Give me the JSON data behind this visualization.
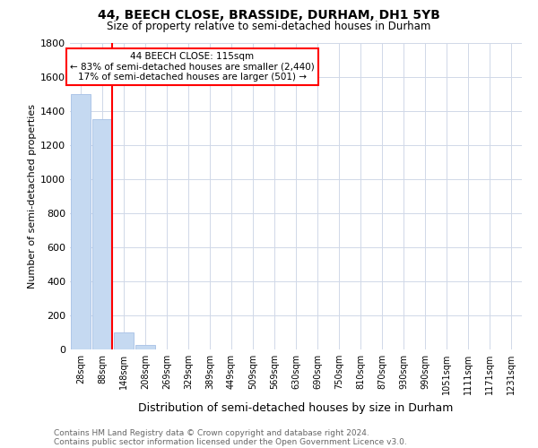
{
  "title1": "44, BEECH CLOSE, BRASSIDE, DURHAM, DH1 5YB",
  "title2": "Size of property relative to semi-detached houses in Durham",
  "xlabel": "Distribution of semi-detached houses by size in Durham",
  "ylabel": "Number of semi-detached properties",
  "footnote1": "Contains HM Land Registry data © Crown copyright and database right 2024.",
  "footnote2": "Contains public sector information licensed under the Open Government Licence v3.0.",
  "annotation_line1": "44 BEECH CLOSE: 115sqm",
  "annotation_line2": "← 83% of semi-detached houses are smaller (2,440)",
  "annotation_line3": "17% of semi-detached houses are larger (501) →",
  "bar_labels": [
    "28sqm",
    "88sqm",
    "148sqm",
    "208sqm",
    "269sqm",
    "329sqm",
    "389sqm",
    "449sqm",
    "509sqm",
    "569sqm",
    "630sqm",
    "690sqm",
    "750sqm",
    "810sqm",
    "870sqm",
    "930sqm",
    "990sqm",
    "1051sqm",
    "1111sqm",
    "1171sqm",
    "1231sqm"
  ],
  "bar_values": [
    1500,
    1350,
    100,
    25,
    0,
    0,
    0,
    0,
    0,
    0,
    0,
    0,
    0,
    0,
    0,
    0,
    0,
    0,
    0,
    0,
    0
  ],
  "bar_color": "#c5d9f1",
  "bar_edge_color": "#aec6e8",
  "red_line_x": 1.45,
  "ylim": [
    0,
    1800
  ],
  "background_color": "#ffffff",
  "grid_color": "#d0d8e8",
  "title1_fontsize": 10,
  "title2_fontsize": 8.5,
  "ylabel_fontsize": 8,
  "xlabel_fontsize": 9,
  "tick_fontsize": 7,
  "footnote_fontsize": 6.5
}
